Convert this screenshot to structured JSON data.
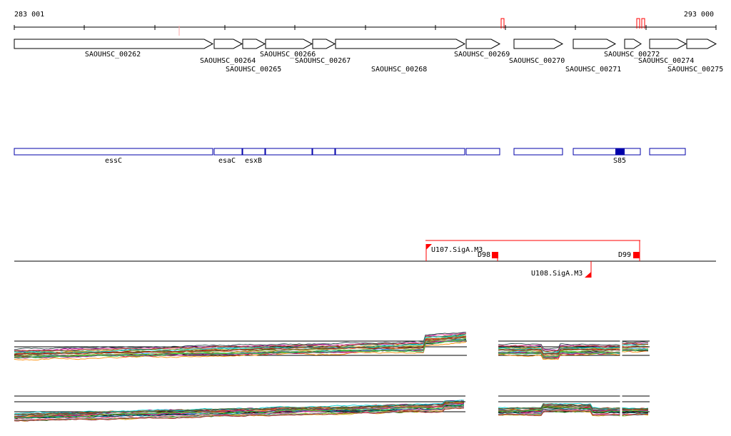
{
  "axis": {
    "start_label": "283 001",
    "end_label": "293 000"
  },
  "colors": {
    "gene_outline": "#000000",
    "feature_box": "#0000aa",
    "feature_fill": "#0000aa",
    "regulator": "#ff0000",
    "baseline": "#000000"
  },
  "genes": [
    {
      "name": "SAOUHSC_00262",
      "strand": "+"
    },
    {
      "name": "SAOUHSC_00264",
      "strand": "+"
    },
    {
      "name": "SAOUHSC_00265",
      "strand": "+"
    },
    {
      "name": "SAOUHSC_00266",
      "strand": "+"
    },
    {
      "name": "SAOUHSC_00267",
      "strand": "+"
    },
    {
      "name": "SAOUHSC_00268",
      "strand": "+"
    },
    {
      "name": "SAOUHSC_00269",
      "strand": "+"
    },
    {
      "name": "SAOUHSC_00270",
      "strand": "+"
    },
    {
      "name": "SAOUHSC_00271",
      "strand": "+"
    },
    {
      "name": "SAOUHSC_00272",
      "strand": "+"
    },
    {
      "name": "SAOUHSC_00274",
      "strand": "+"
    },
    {
      "name": "SAOUHSC_00275",
      "strand": "+"
    }
  ],
  "features": [
    {
      "label": "essC"
    },
    {
      "label": "esaC"
    },
    {
      "label": "esxB"
    },
    {
      "label": ""
    },
    {
      "label": ""
    },
    {
      "label": ""
    },
    {
      "label": ""
    },
    {
      "label": ""
    },
    {
      "label": "S85",
      "filled": true
    },
    {
      "label": ""
    }
  ],
  "regulators": [
    {
      "label": "U107.SigA.M3",
      "kind": "upstream"
    },
    {
      "label": "D98",
      "kind": "downstream"
    },
    {
      "label": "D99",
      "kind": "downstream"
    },
    {
      "label": "U108.SigA.M3",
      "kind": "upstream"
    }
  ],
  "profile_panels": [
    {
      "name": "expression-profile-upper"
    },
    {
      "name": "expression-profile-lower"
    }
  ],
  "line_colors": [
    "#8b0000",
    "#228b22",
    "#1e90ff",
    "#ff8c00",
    "#800080",
    "#000000",
    "#b22222",
    "#008080",
    "#9acd32",
    "#ff69b4",
    "#6b8e23",
    "#4682b4",
    "#d2691e",
    "#2f4f4f",
    "#daa520",
    "#8b4513",
    "#00ced1",
    "#c71585",
    "#556b2f",
    "#708090",
    "#a52a2a",
    "#32cd32"
  ]
}
